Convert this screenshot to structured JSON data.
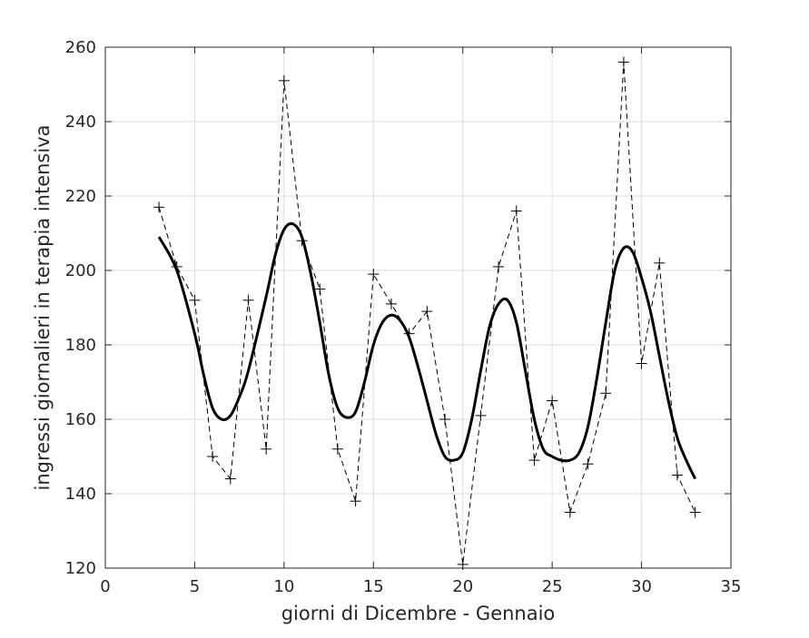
{
  "chart_data": {
    "type": "line",
    "xlabel": "giorni di Dicembre - Gennaio",
    "ylabel": "ingressi giornalieri in terapia intensiva",
    "xlim": [
      0,
      35
    ],
    "ylim": [
      120,
      260
    ],
    "xticks": [
      0,
      5,
      10,
      15,
      20,
      25,
      30,
      35
    ],
    "yticks": [
      120,
      140,
      160,
      180,
      200,
      220,
      240,
      260
    ],
    "grid": true,
    "series": [
      {
        "style": "dashed-with-plus-markers",
        "color": "#000000",
        "x": [
          3,
          4,
          5,
          6,
          7,
          8,
          9,
          10,
          11,
          12,
          13,
          14,
          15,
          16,
          17,
          18,
          19,
          20,
          21,
          22,
          23,
          24,
          25,
          26,
          27,
          28,
          29,
          30,
          31,
          32,
          33
        ],
        "y": [
          217,
          201,
          192,
          150,
          144,
          192,
          152,
          251,
          208,
          195,
          152,
          138,
          199,
          191,
          183,
          189,
          160,
          121,
          161,
          201,
          216,
          149,
          165,
          135,
          148,
          167,
          256,
          175,
          202,
          145,
          135
        ]
      },
      {
        "style": "solid-thick-smooth",
        "color": "#000000",
        "x": [
          3,
          4,
          5,
          5.5,
          6,
          6.5,
          7,
          7.5,
          8,
          9,
          9.5,
          10,
          10.5,
          11,
          11.5,
          12,
          12.5,
          13,
          13.5,
          14,
          14.5,
          15,
          15.5,
          16,
          16.5,
          17,
          17.5,
          18,
          18.5,
          19,
          19.5,
          20,
          20.5,
          21,
          21.5,
          22,
          22.5,
          23,
          23.5,
          24,
          24.5,
          25,
          25.5,
          26,
          26.5,
          27,
          27.5,
          28,
          28.5,
          29,
          29.5,
          30,
          30.5,
          31,
          31.5,
          32,
          32.5,
          33
        ],
        "y": [
          209,
          200,
          183,
          172,
          163,
          160,
          161,
          166,
          173,
          193,
          204,
          211,
          212.5,
          209,
          199,
          186,
          172,
          163,
          160.5,
          162,
          170,
          180,
          186,
          188,
          186.5,
          182,
          174,
          165,
          156,
          150,
          149,
          151,
          160,
          173,
          185,
          191,
          192,
          186,
          173,
          160,
          152,
          150,
          149,
          149,
          151,
          158,
          171,
          186,
          200,
          206,
          205,
          198,
          189,
          177,
          165,
          155,
          149,
          144
        ]
      }
    ]
  }
}
